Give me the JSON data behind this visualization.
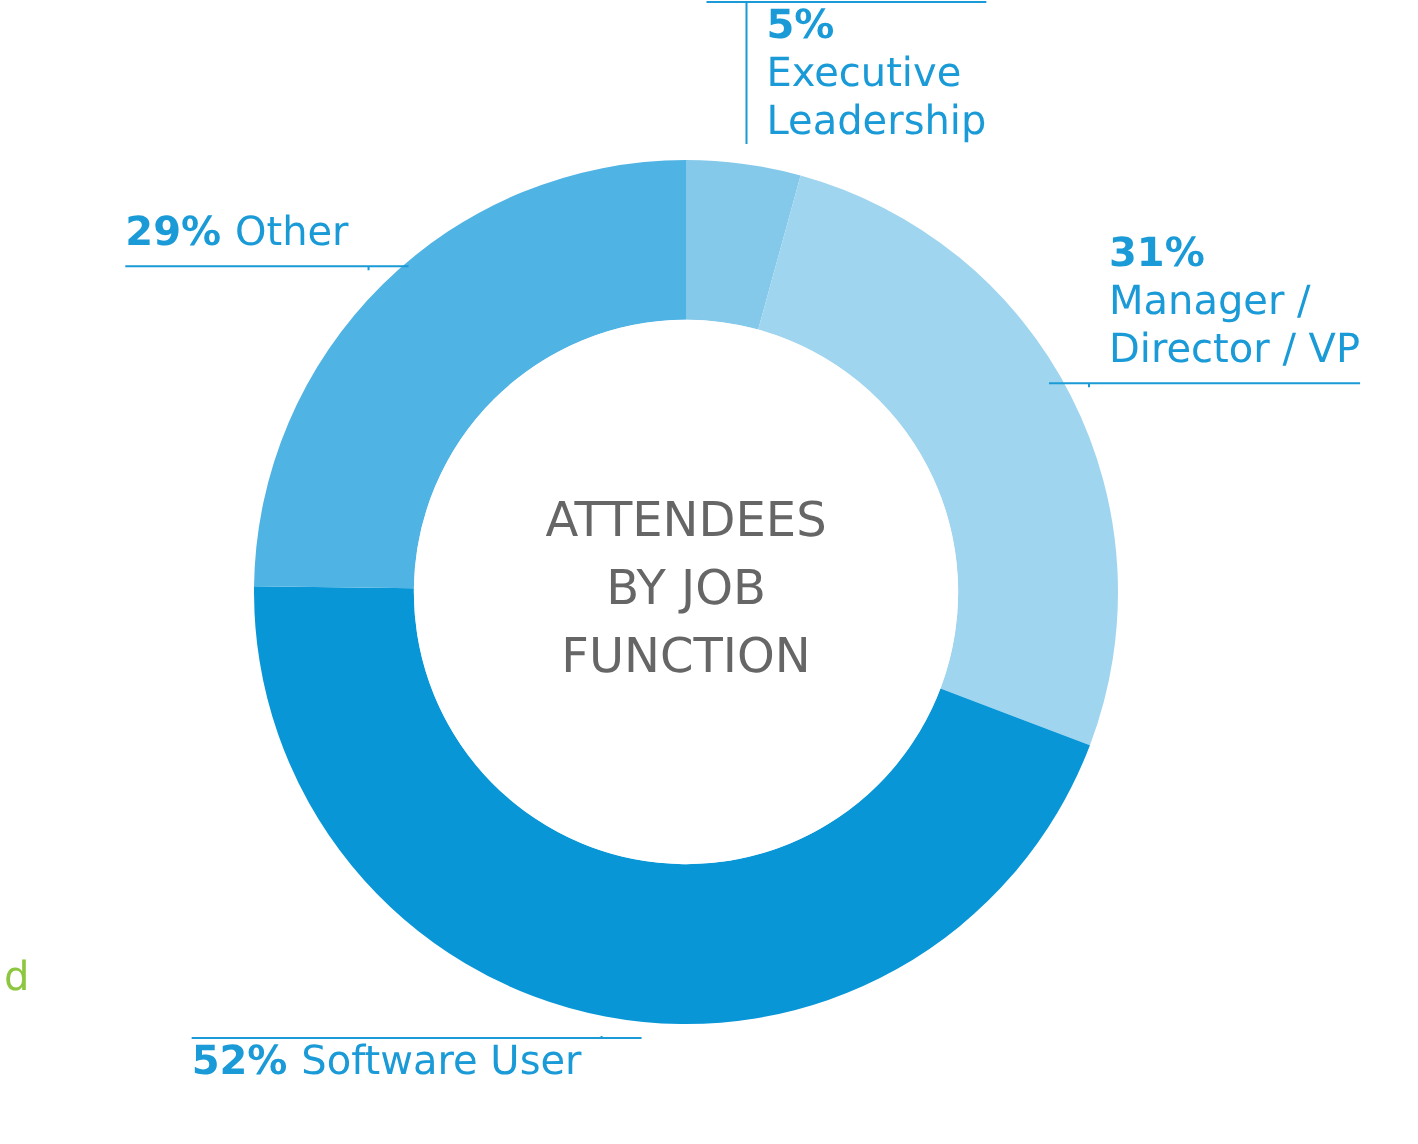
{
  "chart_data": {
    "type": "donut",
    "title": "ATTENDEES BY JOB FUNCTION",
    "categories": [
      "Executive Leadership",
      "Manager / Director / VP",
      "Software User",
      "Other"
    ],
    "values": [
      5,
      31,
      52,
      29
    ],
    "value_labels": [
      "5%",
      "31%",
      "52%",
      "29%"
    ],
    "colors": [
      "#85c9ea",
      "#a0d5ef",
      "#0896d7",
      "#4fb3e4"
    ],
    "annotations": [
      "d"
    ],
    "legend": false
  }
}
